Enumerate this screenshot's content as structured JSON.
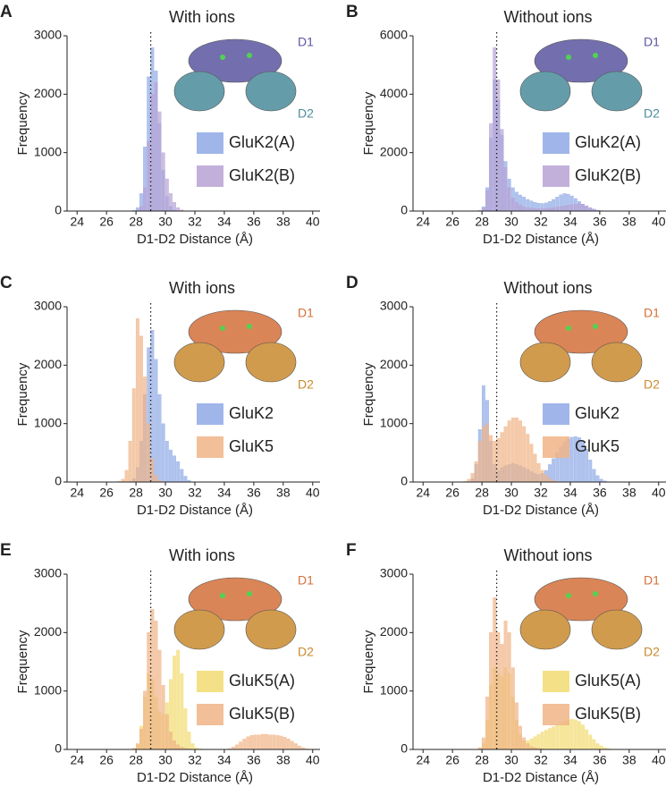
{
  "chart_data": [
    {
      "type": "histogram",
      "panel": "A",
      "title": "With ions",
      "xlabel": "D1-D2 Distance (Å)",
      "ylabel": "Frequency",
      "xlim": [
        23.5,
        40.5
      ],
      "xticks": [
        24,
        26,
        28,
        30,
        32,
        34,
        36,
        38,
        40
      ],
      "ylim": [
        0,
        3000
      ],
      "yticks": [
        0,
        1000,
        2000,
        3000
      ],
      "reference_x": 29,
      "domain_labels": [
        "D1",
        "D2"
      ],
      "domain_label_colors": [
        "#5b57a0",
        "#4a8d9b"
      ],
      "bins": [
        27.5,
        27.75,
        28,
        28.25,
        28.5,
        28.75,
        29,
        29.25,
        29.5,
        29.75,
        30,
        30.25,
        30.5,
        30.75,
        31,
        31.25,
        31.5
      ],
      "series": [
        {
          "name": "GluK2(A)",
          "color": "#8fa9e6",
          "values": [
            0,
            10,
            60,
            300,
            1100,
            2300,
            2800,
            2400,
            1500,
            700,
            250,
            80,
            20,
            5,
            0,
            0
          ]
        },
        {
          "name": "GluK2(B)",
          "color": "#b7a2d4",
          "values": [
            0,
            0,
            10,
            80,
            400,
            1200,
            2000,
            2200,
            1700,
            1000,
            550,
            300,
            150,
            60,
            20,
            5
          ]
        }
      ]
    },
    {
      "type": "histogram",
      "panel": "B",
      "title": "Without ions",
      "xlabel": "D1-D2 Distance (Å)",
      "ylabel": "Frequency",
      "xlim": [
        23.5,
        40.5
      ],
      "xticks": [
        24,
        26,
        28,
        30,
        32,
        34,
        36,
        38,
        40
      ],
      "ylim": [
        0,
        6000
      ],
      "yticks": [
        0,
        2000,
        4000,
        6000
      ],
      "reference_x": 29,
      "domain_labels": [
        "D1",
        "D2"
      ],
      "domain_label_colors": [
        "#5b57a0",
        "#4a8d9b"
      ],
      "bins": [
        27.5,
        27.75,
        28,
        28.25,
        28.5,
        28.75,
        29,
        29.25,
        29.5,
        29.75,
        30,
        30.25,
        30.5,
        30.75,
        31,
        31.25,
        31.5,
        31.75,
        32,
        32.25,
        32.5,
        32.75,
        33,
        33.25,
        33.5,
        33.75,
        34,
        34.25,
        34.5,
        34.75,
        35,
        35.25,
        35.5,
        35.75,
        36,
        36.25,
        36.5,
        36.75,
        37,
        37.25,
        37.5
      ],
      "series": [
        {
          "name": "GluK2(A)",
          "color": "#8fa9e6",
          "values": [
            0,
            20,
            150,
            800,
            2500,
            4500,
            3800,
            2600,
            1700,
            1100,
            800,
            650,
            550,
            480,
            400,
            350,
            300,
            270,
            260,
            280,
            330,
            400,
            480,
            560,
            600,
            580,
            520,
            430,
            330,
            240,
            160,
            100,
            60,
            30,
            15,
            5,
            0,
            0,
            0,
            0
          ]
        },
        {
          "name": "GluK2(B)",
          "color": "#b7a2d4",
          "values": [
            0,
            10,
            100,
            700,
            3000,
            5600,
            4500,
            2800,
            1500,
            800,
            450,
            300,
            200,
            150,
            120,
            100,
            90,
            80,
            80,
            90,
            100,
            120,
            140,
            160,
            180,
            200,
            220,
            240,
            250,
            230,
            180,
            120,
            70,
            30,
            10,
            0,
            0,
            0,
            0,
            0
          ]
        }
      ]
    },
    {
      "type": "histogram",
      "panel": "C",
      "title": "With ions",
      "xlabel": "D1-D2 Distance (Å)",
      "ylabel": "Frequency",
      "xlim": [
        23.5,
        40.5
      ],
      "xticks": [
        24,
        26,
        28,
        30,
        32,
        34,
        36,
        38,
        40
      ],
      "ylim": [
        0,
        3000
      ],
      "yticks": [
        0,
        1000,
        2000,
        3000
      ],
      "reference_x": 29,
      "domain_labels": [
        "D1",
        "D2"
      ],
      "domain_label_colors": [
        "#d4703a",
        "#c98a2e"
      ],
      "bins": [
        26.5,
        26.75,
        27,
        27.25,
        27.5,
        27.75,
        28,
        28.25,
        28.5,
        28.75,
        29,
        29.25,
        29.5,
        29.75,
        30,
        30.25,
        30.5,
        30.75,
        31,
        31.25,
        31.5,
        31.75,
        32
      ],
      "series": [
        {
          "name": "GluK2",
          "color": "#8fa9e6",
          "values": [
            0,
            0,
            0,
            0,
            10,
            60,
            250,
            700,
            1500,
            2300,
            2600,
            2100,
            1500,
            1000,
            700,
            550,
            450,
            350,
            220,
            100,
            30,
            5
          ]
        },
        {
          "name": "GluK5",
          "color": "#f0b486",
          "values": [
            0,
            10,
            50,
            200,
            700,
            1600,
            2800,
            2500,
            1800,
            1000,
            400,
            120,
            30,
            5,
            0,
            0,
            0,
            0,
            0,
            0,
            0,
            0
          ]
        }
      ]
    },
    {
      "type": "histogram",
      "panel": "D",
      "title": "Without ions",
      "xlabel": "D1-D2 Distance (Å)",
      "ylabel": "Frequency",
      "xlim": [
        23.5,
        40.5
      ],
      "xticks": [
        24,
        26,
        28,
        30,
        32,
        34,
        36,
        38,
        40
      ],
      "ylim": [
        0,
        3000
      ],
      "yticks": [
        0,
        1000,
        2000,
        3000
      ],
      "reference_x": 29,
      "domain_labels": [
        "D1",
        "D2"
      ],
      "domain_label_colors": [
        "#d4703a",
        "#c98a2e"
      ],
      "bins": [
        26.5,
        26.75,
        27,
        27.25,
        27.5,
        27.75,
        28,
        28.25,
        28.5,
        28.75,
        29,
        29.25,
        29.5,
        29.75,
        30,
        30.25,
        30.5,
        30.75,
        31,
        31.25,
        31.5,
        31.75,
        32,
        32.25,
        32.5,
        32.75,
        33,
        33.25,
        33.5,
        33.75,
        34,
        34.25,
        34.5,
        34.75,
        35,
        35.25,
        35.5,
        35.75,
        36,
        36.25,
        36.5,
        36.75,
        37,
        37.25,
        37.5
      ],
      "series": [
        {
          "name": "GluK2",
          "color": "#8fa9e6",
          "values": [
            0,
            0,
            10,
            60,
            300,
            900,
            1650,
            1400,
            700,
            300,
            200,
            250,
            280,
            300,
            320,
            300,
            280,
            250,
            220,
            180,
            150,
            130,
            150,
            200,
            300,
            400,
            500,
            600,
            680,
            740,
            770,
            780,
            760,
            700,
            560,
            380,
            220,
            110,
            50,
            20,
            5,
            0,
            0,
            0
          ]
        },
        {
          "name": "GluK5",
          "color": "#f0b486",
          "values": [
            0,
            10,
            50,
            150,
            350,
            700,
            950,
            1000,
            800,
            700,
            750,
            850,
            950,
            1050,
            1100,
            1100,
            1050,
            950,
            820,
            650,
            480,
            320,
            200,
            120,
            60,
            30,
            10,
            0,
            0,
            0,
            0,
            0,
            0,
            0,
            0,
            0,
            0,
            0,
            0,
            0,
            0,
            0,
            0,
            0
          ]
        }
      ]
    },
    {
      "type": "histogram",
      "panel": "E",
      "title": "With ions",
      "xlabel": "D1-D2 Distance (Å)",
      "ylabel": "Frequency",
      "xlim": [
        23.5,
        40.5
      ],
      "xticks": [
        24,
        26,
        28,
        30,
        32,
        34,
        36,
        38,
        40
      ],
      "ylim": [
        0,
        3000
      ],
      "yticks": [
        0,
        1000,
        2000,
        3000
      ],
      "reference_x": 29,
      "domain_labels": [
        "D1",
        "D2"
      ],
      "domain_label_colors": [
        "#d4703a",
        "#c98a2e"
      ],
      "bins": [
        27.5,
        27.75,
        28,
        28.25,
        28.5,
        28.75,
        29,
        29.25,
        29.5,
        29.75,
        30,
        30.25,
        30.5,
        30.75,
        31,
        31.25,
        31.5,
        31.75,
        32,
        32.25,
        32.5,
        32.75,
        33,
        33.25,
        33.5,
        33.75,
        34,
        34.25,
        34.5,
        34.75,
        35,
        35.25,
        35.5,
        35.75,
        36,
        36.25,
        36.5,
        36.75,
        37,
        37.25,
        37.5,
        37.75,
        38,
        38.25,
        38.5,
        38.75,
        39,
        39.25,
        39.5,
        39.75,
        40
      ],
      "series": [
        {
          "name": "GluK5(A)",
          "color": "#f2dc72",
          "values": [
            0,
            10,
            80,
            400,
            900,
            1300,
            1200,
            900,
            650,
            600,
            800,
            1200,
            1600,
            1700,
            1300,
            700,
            300,
            100,
            30,
            10,
            0,
            0,
            0,
            0,
            0,
            0,
            0,
            0,
            0,
            0,
            0,
            0,
            0,
            0,
            0,
            0,
            0,
            0,
            0,
            0,
            0,
            0,
            0,
            0,
            0,
            0,
            0,
            0,
            0,
            0
          ]
        },
        {
          "name": "GluK5(B)",
          "color": "#f0b486",
          "values": [
            0,
            20,
            100,
            350,
            1000,
            2000,
            2400,
            2200,
            1700,
            1100,
            600,
            300,
            150,
            80,
            40,
            20,
            10,
            5,
            0,
            0,
            0,
            0,
            0,
            0,
            0,
            0,
            5,
            15,
            40,
            80,
            130,
            180,
            220,
            240,
            250,
            250,
            260,
            260,
            250,
            250,
            240,
            230,
            210,
            180,
            140,
            100,
            60,
            30,
            10,
            0
          ]
        }
      ]
    },
    {
      "type": "histogram",
      "panel": "F",
      "title": "Without ions",
      "xlabel": "D1-D2 Distance (Å)",
      "ylabel": "Frequency",
      "xlim": [
        23.5,
        40.5
      ],
      "xticks": [
        24,
        26,
        28,
        30,
        32,
        34,
        36,
        38,
        40
      ],
      "ylim": [
        0,
        3000
      ],
      "yticks": [
        0,
        1000,
        2000,
        3000
      ],
      "reference_x": 29,
      "domain_labels": [
        "D1",
        "D2"
      ],
      "domain_label_colors": [
        "#d4703a",
        "#c98a2e"
      ],
      "bins": [
        27.5,
        27.75,
        28,
        28.25,
        28.5,
        28.75,
        29,
        29.25,
        29.5,
        29.75,
        30,
        30.25,
        30.5,
        30.75,
        31,
        31.25,
        31.5,
        31.75,
        32,
        32.25,
        32.5,
        32.75,
        33,
        33.25,
        33.5,
        33.75,
        34,
        34.25,
        34.5,
        34.75,
        35,
        35.25,
        35.5,
        35.75,
        36,
        36.25,
        36.5,
        36.75,
        37,
        37.25,
        37.5,
        37.75,
        38
      ],
      "series": [
        {
          "name": "GluK5(A)",
          "color": "#f2dc72",
          "values": [
            0,
            10,
            100,
            500,
            1100,
            1400,
            1300,
            1250,
            1400,
            1300,
            900,
            500,
            250,
            150,
            150,
            180,
            220,
            260,
            300,
            330,
            360,
            390,
            420,
            450,
            480,
            500,
            520,
            510,
            480,
            420,
            340,
            250,
            170,
            100,
            60,
            30,
            15,
            5,
            0,
            0,
            0,
            0
          ]
        },
        {
          "name": "GluK5(B)",
          "color": "#f0b486",
          "values": [
            0,
            30,
            200,
            900,
            2000,
            2600,
            2000,
            1800,
            2200,
            2000,
            1400,
            800,
            400,
            200,
            100,
            50,
            30,
            20,
            10,
            5,
            0,
            0,
            0,
            0,
            0,
            0,
            0,
            0,
            0,
            0,
            0,
            0,
            0,
            0,
            0,
            0,
            0,
            0,
            0,
            0,
            0,
            0
          ]
        }
      ]
    }
  ]
}
